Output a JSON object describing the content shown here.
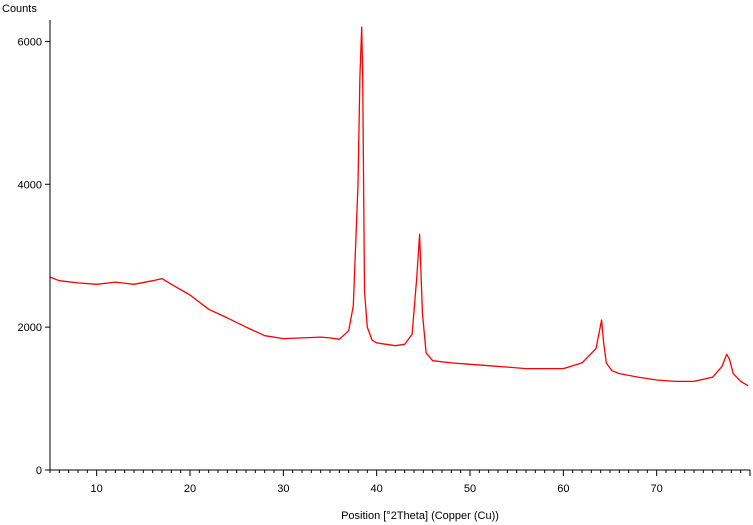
{
  "chart_data": {
    "type": "line",
    "title": "",
    "ylabel": "Counts",
    "xlabel": "Position [°2Theta] (Copper (Cu))",
    "xlim": [
      5,
      80
    ],
    "ylim": [
      0,
      6300
    ],
    "x_ticks": [
      10,
      20,
      30,
      40,
      50,
      60,
      70
    ],
    "y_ticks": [
      0,
      2000,
      4000,
      6000
    ],
    "grid": false,
    "legend": "none",
    "series": [
      {
        "color": "#ff0000",
        "x": [
          5,
          6,
          8,
          10,
          12,
          14,
          16,
          17,
          18,
          20,
          22,
          24,
          26,
          28,
          30,
          32,
          34,
          35,
          36,
          37,
          37.5,
          38,
          38.2,
          38.4,
          38.5,
          38.7,
          39,
          39.5,
          40,
          41,
          42,
          43,
          43.8,
          44.3,
          44.6,
          44.9,
          45.3,
          46,
          48,
          50,
          52,
          54,
          56,
          58,
          60,
          62,
          63.5,
          64.1,
          64.3,
          64.6,
          65.2,
          66,
          68,
          70,
          72,
          74,
          76,
          77,
          77.5,
          77.8,
          78.2,
          79,
          79.8
        ],
        "y": [
          2700,
          2650,
          2620,
          2600,
          2630,
          2600,
          2650,
          2680,
          2600,
          2450,
          2250,
          2130,
          2000,
          1880,
          1840,
          1850,
          1860,
          1850,
          1830,
          1950,
          2300,
          4000,
          5500,
          6200,
          5500,
          2500,
          2000,
          1820,
          1780,
          1760,
          1740,
          1760,
          1900,
          2700,
          3300,
          2200,
          1640,
          1530,
          1500,
          1480,
          1460,
          1440,
          1420,
          1420,
          1420,
          1500,
          1700,
          2100,
          1800,
          1500,
          1390,
          1350,
          1300,
          1260,
          1240,
          1240,
          1300,
          1450,
          1620,
          1550,
          1350,
          1240,
          1180
        ]
      }
    ]
  }
}
